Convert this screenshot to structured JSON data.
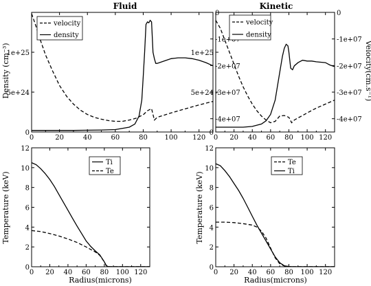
{
  "chart_data": [
    {
      "type": "line",
      "title": "Fluid",
      "xlabel": "",
      "ylabel": "Density (cm⁻³)",
      "y2label": "",
      "xlim": [
        0,
        130
      ],
      "ylim": [
        0,
        1.5e+25
      ],
      "y2lim": [
        -45000000.0,
        0
      ],
      "xticks": [
        "0",
        "20",
        "40",
        "60",
        "80",
        "100",
        "120"
      ],
      "yticks": [
        "0",
        "5e+24",
        "1e+25"
      ],
      "y2ticks": [
        "0",
        "-1e+07",
        "-2e+07",
        "-3e+07",
        "-4e+07"
      ],
      "legend_position": "top-left",
      "legend": [
        "velocity",
        "density"
      ],
      "series": [
        {
          "name": "velocity",
          "axis": "right",
          "style": "dashed",
          "x": [
            0,
            3,
            6,
            10,
            15,
            20,
            25,
            30,
            35,
            40,
            45,
            50,
            55,
            60,
            65,
            70,
            75,
            80,
            83,
            86,
            88,
            90,
            100,
            110,
            120,
            130
          ],
          "y": [
            -500000.0,
            -5000000.0,
            -10000000.0,
            -16000000.0,
            -22000000.0,
            -27500000.0,
            -31500000.0,
            -34500000.0,
            -36800000.0,
            -38400000.0,
            -39500000.0,
            -40200000.0,
            -40700000.0,
            -41000000.0,
            -41000000.0,
            -40500000.0,
            -39800000.0,
            -38500000.0,
            -37000000.0,
            -36200000.0,
            -40500000.0,
            -39500000.0,
            -37800000.0,
            -36300000.0,
            -34800000.0,
            -33500000.0
          ]
        },
        {
          "name": "density",
          "axis": "left",
          "style": "solid",
          "x": [
            0,
            10,
            20,
            30,
            40,
            50,
            60,
            70,
            74,
            77,
            79,
            80,
            81,
            82,
            83,
            84,
            85,
            86,
            87,
            88,
            89,
            90,
            95,
            100,
            105,
            110,
            115,
            120,
            125,
            130
          ],
          "y": [
            2e+23,
            2e+23,
            2e+23,
            2e+23,
            2.2e+23,
            2.5e+23,
            3e+23,
            6e+23,
            1e+24,
            2e+24,
            4e+24,
            7e+24,
            1e+25,
            1.35e+25,
            1.38e+25,
            1.37e+25,
            1.4e+25,
            1.38e+25,
            1e+25,
            9.2e+24,
            8.6e+24,
            8.6e+24,
            8.9e+24,
            9.2e+24,
            9.3e+24,
            9.3e+24,
            9.2e+24,
            9e+24,
            8.7e+24,
            8.3e+24
          ]
        }
      ]
    },
    {
      "type": "line",
      "title": "Kinetic",
      "xlabel": "",
      "ylabel": "",
      "y2label": "Velocity(cm.s⁻¹)",
      "xlim": [
        0,
        130
      ],
      "ylim": [
        0,
        1.5e+25
      ],
      "y2lim": [
        -45000000.0,
        0
      ],
      "xticks": [
        "0",
        "20",
        "40",
        "60",
        "80",
        "100",
        "120"
      ],
      "yticks": [
        "0",
        "5e+24",
        "1e+25"
      ],
      "y2ticks": [
        "0",
        "-1e+07",
        "-2e+07",
        "-3e+07",
        "-4e+07"
      ],
      "legend_position": "top-left",
      "legend": [
        "velocity",
        "density"
      ],
      "series": [
        {
          "name": "velocity",
          "axis": "right",
          "style": "dashed",
          "x": [
            0,
            5,
            10,
            15,
            20,
            25,
            30,
            35,
            40,
            45,
            50,
            55,
            60,
            65,
            70,
            75,
            80,
            83,
            86,
            90,
            95,
            100,
            110,
            120,
            130
          ],
          "y": [
            -3000000.0,
            -6000000.0,
            -10500000.0,
            -15000000.0,
            -19500000.0,
            -24000000.0,
            -28000000.0,
            -31500000.0,
            -34500000.0,
            -37000000.0,
            -39000000.0,
            -40500000.0,
            -41500000.0,
            -41000000.0,
            -39000000.0,
            -38800000.0,
            -39500000.0,
            -41500000.0,
            -40500000.0,
            -39700000.0,
            -38800000.0,
            -37800000.0,
            -36000000.0,
            -34500000.0,
            -33000000.0
          ]
        },
        {
          "name": "density",
          "axis": "left",
          "style": "solid",
          "x": [
            0,
            10,
            20,
            30,
            40,
            50,
            55,
            60,
            65,
            70,
            73,
            75,
            77,
            79,
            80,
            81,
            82,
            84,
            86,
            90,
            95,
            100,
            105,
            110,
            120,
            125,
            130
          ],
          "y": [
            6e+23,
            6e+23,
            6e+23,
            6e+23,
            7e+23,
            1e+24,
            1.4e+24,
            2.2e+24,
            4e+24,
            7.5e+24,
            9.5e+24,
            1.05e+25,
            1.1e+25,
            1.08e+25,
            1e+25,
            9e+24,
            8e+24,
            7.8e+24,
            8.3e+24,
            8.7e+24,
            9e+24,
            8.9e+24,
            8.9e+24,
            8.8e+24,
            8.7e+24,
            8.4e+24,
            8.2e+24
          ]
        }
      ]
    },
    {
      "type": "line",
      "title": "",
      "xlabel": "Radius(microns)",
      "ylabel": "Temperature (keV)",
      "xlim": [
        0,
        130
      ],
      "ylim": [
        0,
        12
      ],
      "xticks": [
        "0",
        "20",
        "40",
        "60",
        "80",
        "100",
        "120"
      ],
      "yticks": [
        "0",
        "2",
        "4",
        "6",
        "8",
        "10",
        "12"
      ],
      "legend_position": "top-right",
      "legend": [
        "Ti",
        "Te"
      ],
      "series": [
        {
          "name": "Ti",
          "style": "solid",
          "x": [
            0,
            5,
            10,
            15,
            20,
            25,
            30,
            35,
            40,
            45,
            50,
            55,
            60,
            65,
            70,
            75,
            80,
            82,
            84,
            86,
            90,
            100,
            110,
            120,
            130
          ],
          "y": [
            10.5,
            10.3,
            9.9,
            9.4,
            8.8,
            8.1,
            7.3,
            6.5,
            5.7,
            4.9,
            4.1,
            3.35,
            2.6,
            2.05,
            1.6,
            1.2,
            0.5,
            0.12,
            0.03,
            0.01,
            0.01,
            0.01,
            0.01,
            0.01,
            0.01
          ]
        },
        {
          "name": "Te",
          "style": "dashed",
          "x": [
            0,
            10,
            20,
            30,
            40,
            50,
            60,
            70,
            75,
            80,
            82,
            84,
            86,
            90,
            100,
            110,
            120,
            130
          ],
          "y": [
            3.65,
            3.55,
            3.35,
            3.1,
            2.8,
            2.45,
            2.0,
            1.5,
            1.15,
            0.5,
            0.15,
            0.04,
            0.01,
            0.01,
            0.01,
            0.01,
            0.01,
            0.01
          ]
        }
      ]
    },
    {
      "type": "line",
      "title": "",
      "xlabel": "Radius(microns)",
      "ylabel": "Temperature (keV)",
      "xlim": [
        0,
        130
      ],
      "ylim": [
        0,
        12
      ],
      "xticks": [
        "0",
        "20",
        "40",
        "60",
        "80",
        "100",
        "120"
      ],
      "yticks": [
        "0",
        "2",
        "4",
        "6",
        "8",
        "10",
        "12"
      ],
      "legend_position": "top-right",
      "legend": [
        "Te",
        "Ti"
      ],
      "series": [
        {
          "name": "Te",
          "style": "dashed",
          "x": [
            0,
            10,
            20,
            30,
            40,
            45,
            50,
            55,
            60,
            65,
            70,
            75,
            80,
            85,
            90,
            100,
            110,
            120,
            130
          ],
          "y": [
            4.5,
            4.5,
            4.45,
            4.35,
            4.2,
            4.0,
            3.6,
            2.9,
            1.9,
            0.9,
            0.3,
            0.08,
            0.02,
            0.01,
            0.01,
            0.01,
            0.01,
            0.01,
            0.01
          ]
        },
        {
          "name": "Ti",
          "style": "solid",
          "x": [
            0,
            5,
            10,
            15,
            20,
            25,
            30,
            35,
            40,
            45,
            50,
            55,
            60,
            65,
            70,
            75,
            80,
            85,
            90,
            100,
            110,
            120,
            130
          ],
          "y": [
            10.4,
            10.2,
            9.7,
            9.1,
            8.4,
            7.7,
            6.9,
            6.0,
            5.1,
            4.2,
            3.4,
            2.6,
            1.8,
            1.0,
            0.4,
            0.1,
            0.03,
            0.01,
            0.01,
            0.01,
            0.01,
            0.01,
            0.01
          ]
        }
      ]
    }
  ]
}
